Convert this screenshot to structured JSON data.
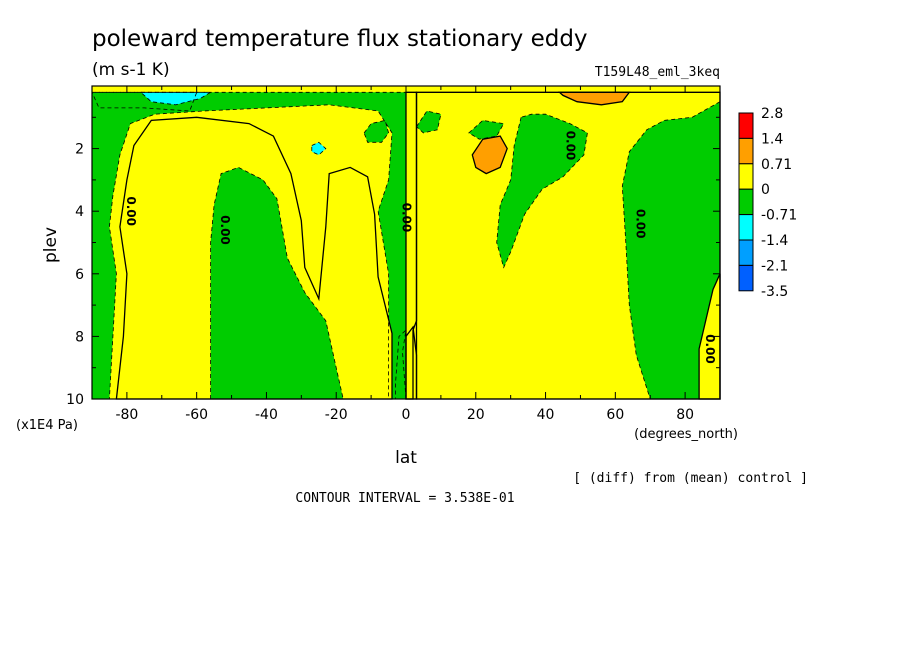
{
  "chart_data": {
    "type": "heatmap",
    "title": "poleward temperature flux stationary eddy",
    "units": "(m s-1 K)",
    "run_label": "T159L48_eml_3keq",
    "xlabel": "lat",
    "x_units": "(degrees_north)",
    "ylabel": "plev",
    "y_units": "(x1E4 Pa)",
    "xlim": [
      -90,
      90
    ],
    "ylim": [
      10,
      0
    ],
    "x_ticks": [
      "-80",
      "-60",
      "-40",
      "-20",
      "0",
      "20",
      "40",
      "60",
      "80"
    ],
    "y_ticks": [
      "2",
      "4",
      "6",
      "8",
      "10"
    ],
    "x_tick_values": [
      -80,
      -60,
      -40,
      -20,
      0,
      20,
      40,
      60,
      80
    ],
    "y_tick_values": [
      2,
      4,
      6,
      8,
      10
    ],
    "contour_label": "0.00",
    "zero_contour_labels": [
      {
        "lat": -79,
        "plev": 4.0
      },
      {
        "lat": -52,
        "plev": 4.6
      },
      {
        "lat": 0,
        "plev": 4.2
      },
      {
        "lat": 67,
        "plev": 4.4
      },
      {
        "lat": 87,
        "plev": 8.4
      },
      {
        "lat": 47,
        "plev": 1.9
      }
    ],
    "legend": {
      "placement": "right",
      "levels": [
        "2.8",
        "1.4",
        "0.71",
        "0",
        "-0.71",
        "-1.4",
        "-2.1",
        "-3.5"
      ],
      "colors": [
        "#ff0000",
        "#ff9f00",
        "#ffff00",
        "#00cc00",
        "#00ffff",
        "#009fff",
        "#0060ff"
      ]
    },
    "regions": [
      {
        "fill": "#00cc00",
        "desc": "negative",
        "poly": [
          [
            -90,
            0.2
          ],
          [
            -90,
            10
          ],
          [
            -85,
            10
          ],
          [
            -84,
            8
          ],
          [
            -83,
            6
          ],
          [
            -85,
            4.5
          ],
          [
            -84,
            3.5
          ],
          [
            -82,
            2.2
          ],
          [
            -79,
            1.2
          ],
          [
            -72,
            0.9
          ],
          [
            -58,
            0.8
          ],
          [
            -40,
            0.7
          ],
          [
            -22,
            0.6
          ],
          [
            -8,
            0.8
          ],
          [
            -4,
            1.5
          ],
          [
            -5,
            3
          ],
          [
            -8,
            4
          ],
          [
            -5,
            6
          ],
          [
            -5,
            10
          ],
          [
            0,
            10
          ],
          [
            0,
            0.2
          ]
        ]
      },
      {
        "fill": "#ffff00",
        "desc": "positive",
        "poly": [
          [
            -83,
            10
          ],
          [
            -81,
            8
          ],
          [
            -80,
            6
          ],
          [
            -82,
            4.5
          ],
          [
            -80,
            3
          ],
          [
            -78,
            1.9
          ],
          [
            -73,
            1.1
          ],
          [
            -60,
            1.0
          ],
          [
            -45,
            1.2
          ],
          [
            -38,
            1.6
          ],
          [
            -33,
            2.8
          ],
          [
            -30,
            4.3
          ],
          [
            -29,
            5.8
          ],
          [
            -25,
            6.8
          ],
          [
            -23,
            4.5
          ],
          [
            -22,
            2.8
          ],
          [
            -16,
            2.6
          ],
          [
            -11,
            2.9
          ],
          [
            -9,
            4.1
          ],
          [
            -8,
            6.1
          ],
          [
            -4,
            7.9
          ],
          [
            -4,
            10
          ]
        ]
      },
      {
        "fill": "#00cc00",
        "desc": "negative",
        "poly": [
          [
            -56,
            10
          ],
          [
            -56,
            5
          ],
          [
            -55,
            3.8
          ],
          [
            -53,
            2.8
          ],
          [
            -48,
            2.6
          ],
          [
            -41,
            3.0
          ],
          [
            -37,
            3.6
          ],
          [
            -34,
            5.5
          ],
          [
            -29,
            6.6
          ],
          [
            -23,
            7.5
          ],
          [
            -20,
            9.0
          ],
          [
            -18,
            10
          ]
        ]
      },
      {
        "fill": "#ffff00",
        "desc": "positive",
        "poly": [
          [
            0,
            10
          ],
          [
            0,
            8.0
          ],
          [
            2,
            7.7
          ],
          [
            3,
            8.6
          ],
          [
            3,
            10
          ]
        ]
      },
      {
        "fill": "#00cc00",
        "desc": "negative",
        "poly": [
          [
            0,
            10
          ],
          [
            -1,
            8.5
          ],
          [
            0,
            7.8
          ],
          [
            -2,
            8.0
          ],
          [
            -3,
            9.5
          ],
          [
            -3,
            10
          ]
        ]
      },
      {
        "fill": "#ffff00",
        "desc": "positive",
        "poly": [
          [
            0,
            0.2
          ],
          [
            0,
            10
          ],
          [
            2,
            10
          ],
          [
            2,
            7.8
          ],
          [
            3,
            7.5
          ],
          [
            3,
            0.2
          ]
        ]
      },
      {
        "fill": "#ffff00",
        "desc": "positive",
        "poly": [
          [
            3,
            0.2
          ],
          [
            90,
            0.2
          ],
          [
            90,
            10
          ],
          [
            3,
            10
          ]
        ]
      },
      {
        "fill": "#00cc00",
        "desc": "negative",
        "poly": [
          [
            33,
            1.0
          ],
          [
            31,
            1.9
          ],
          [
            30,
            3.0
          ],
          [
            27,
            3.8
          ],
          [
            26,
            5.0
          ],
          [
            28,
            5.8
          ],
          [
            30,
            5.3
          ],
          [
            34,
            4.1
          ],
          [
            39,
            3.3
          ],
          [
            45,
            2.9
          ],
          [
            51,
            2.2
          ],
          [
            52,
            1.5
          ],
          [
            47,
            1.2
          ],
          [
            40,
            0.9
          ],
          [
            36,
            0.9
          ]
        ]
      },
      {
        "fill": "#00cc00",
        "desc": "negative",
        "poly": [
          [
            90,
            0.5
          ],
          [
            82,
            1.0
          ],
          [
            74,
            1.1
          ],
          [
            69,
            1.4
          ],
          [
            64,
            2.1
          ],
          [
            62,
            3.2
          ],
          [
            63,
            5.0
          ],
          [
            64,
            7.0
          ],
          [
            66,
            8.6
          ],
          [
            70,
            10
          ],
          [
            90,
            10
          ]
        ]
      },
      {
        "fill": "#ffff00",
        "desc": "positive",
        "poly": [
          [
            84,
            10
          ],
          [
            84,
            8.4
          ],
          [
            88,
            6.5
          ],
          [
            90,
            6.0
          ],
          [
            90,
            10
          ]
        ]
      },
      {
        "fill": "#00cc00",
        "desc": "negative",
        "poly": [
          [
            -12,
            1.5
          ],
          [
            -10,
            1.2
          ],
          [
            -6,
            1.1
          ],
          [
            -5,
            1.5
          ],
          [
            -7,
            1.8
          ],
          [
            -11,
            1.8
          ]
        ]
      },
      {
        "fill": "#00cc00",
        "desc": "negative",
        "poly": [
          [
            3,
            1.3
          ],
          [
            6,
            0.8
          ],
          [
            10,
            0.9
          ],
          [
            9,
            1.4
          ],
          [
            5,
            1.5
          ]
        ]
      },
      {
        "fill": "#00cc00",
        "desc": "negative",
        "poly": [
          [
            18,
            1.5
          ],
          [
            22,
            1.1
          ],
          [
            28,
            1.2
          ],
          [
            26,
            1.6
          ],
          [
            21,
            1.7
          ]
        ]
      },
      {
        "fill": "#00cc00",
        "desc": "negative",
        "poly": [
          [
            -90,
            0.2
          ],
          [
            -60,
            0.2
          ],
          [
            -62,
            0.8
          ],
          [
            -75,
            0.7
          ],
          [
            -88,
            0.7
          ]
        ]
      },
      {
        "fill": "#ff9f00",
        "desc": "positive maximum",
        "poly": [
          [
            19,
            2.2
          ],
          [
            22,
            1.7
          ],
          [
            27,
            1.6
          ],
          [
            29,
            2.0
          ],
          [
            27,
            2.6
          ],
          [
            23,
            2.8
          ],
          [
            20,
            2.6
          ]
        ]
      },
      {
        "fill": "#ff9f00",
        "desc": "positive maximum",
        "poly": [
          [
            44,
            0.2
          ],
          [
            64,
            0.2
          ],
          [
            62,
            0.5
          ],
          [
            56,
            0.6
          ],
          [
            49,
            0.5
          ],
          [
            45,
            0.3
          ]
        ]
      },
      {
        "fill": "#00ffff",
        "desc": "negative minimum",
        "poly": [
          [
            -76,
            0.2
          ],
          [
            -56,
            0.2
          ],
          [
            -59,
            0.4
          ],
          [
            -66,
            0.6
          ],
          [
            -73,
            0.5
          ]
        ]
      },
      {
        "fill": "#00ffff",
        "desc": "negative minimum",
        "poly": [
          [
            -27,
            1.9
          ],
          [
            -25,
            1.8
          ],
          [
            -23,
            2.0
          ],
          [
            -25,
            2.2
          ],
          [
            -27,
            2.1
          ]
        ]
      }
    ]
  },
  "footer": {
    "diff_note": "[ (diff) from (mean) control ]",
    "contour_interval": "CONTOUR INTERVAL = 3.538E-01"
  }
}
